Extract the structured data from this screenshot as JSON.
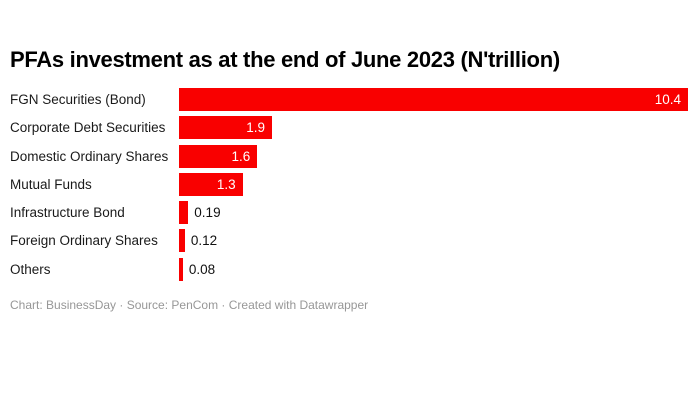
{
  "title": "PFAs investment as at the end of June 2023 (N'trillion)",
  "footer": "Chart: BusinessDay · Source: PenCom · Created with Datawrapper",
  "chart_data": {
    "type": "bar",
    "orientation": "horizontal",
    "title": "PFAs investment as at the end of June 2023 (N'trillion)",
    "categories": [
      "FGN Securities (Bond)",
      "Corporate Debt Securities",
      "Domestic Ordinary Shares",
      "Mutual Funds",
      "Infrastructure Bond",
      "Foreign Ordinary Shares",
      "Others"
    ],
    "values": [
      10.4,
      1.9,
      1.6,
      1.3,
      0.19,
      0.12,
      0.08
    ],
    "value_labels": [
      "10.4",
      "1.9",
      "1.6",
      "1.3",
      "0.19",
      "0.12",
      "0.08"
    ],
    "unit": "N'trillion",
    "xlim": [
      0,
      10.4
    ],
    "bar_color": "#f90000",
    "grid": false,
    "legend": false,
    "axis_labels": false,
    "source_note": "Chart: BusinessDay · Source: PenCom · Created with Datawrapper"
  }
}
